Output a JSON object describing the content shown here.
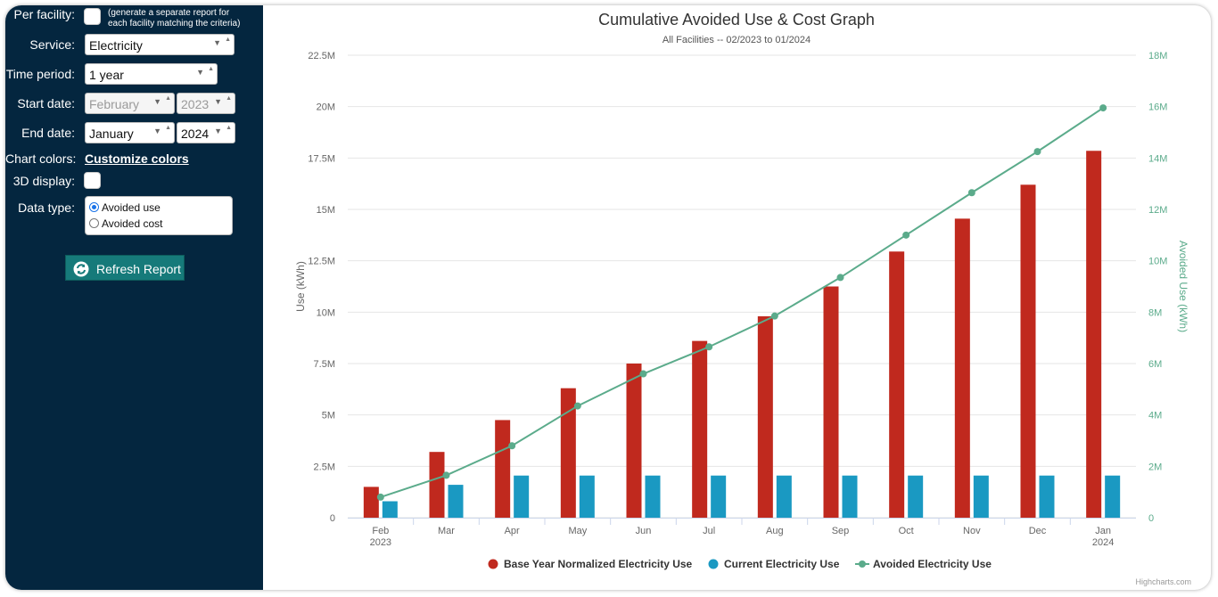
{
  "sidebar": {
    "per_facility": {
      "label": "Per facility:",
      "note_line1": "(generate a separate report for",
      "note_line2": "each facility matching the criteria)"
    },
    "service": {
      "label": "Service:",
      "value": "Electricity"
    },
    "time_period": {
      "label": "Time period:",
      "value": "1 year"
    },
    "start_date": {
      "label": "Start date:",
      "month": "February",
      "year": "2023"
    },
    "end_date": {
      "label": "End date:",
      "month": "January",
      "year": "2024"
    },
    "chart_colors": {
      "label": "Chart colors:",
      "link": "Customize colors"
    },
    "display_3d": {
      "label": "3D display:"
    },
    "data_type": {
      "label": "Data type:",
      "options": [
        "Avoided use",
        "Avoided cost"
      ],
      "selected": "Avoided use"
    },
    "refresh_label": "Refresh Report",
    "bg_color": "#04263f"
  },
  "chart_data": {
    "type": "bar",
    "title": "Cumulative Avoided Use & Cost Graph",
    "subtitle": "All Facilities -- 02/2023 to 01/2024",
    "categories": [
      "Feb",
      "Mar",
      "Apr",
      "May",
      "Jun",
      "Jul",
      "Aug",
      "Sep",
      "Oct",
      "Nov",
      "Dec",
      "Jan"
    ],
    "category_years": [
      "2023",
      "",
      "",
      "",
      "",
      "",
      "",
      "",
      "",
      "",
      "",
      "2024"
    ],
    "ylabel": "Use (kWh)",
    "ylabel_right": "Avoided Use (kWh)",
    "ylim": [
      0,
      22500000
    ],
    "ylim_right": [
      0,
      18000000
    ],
    "yticks": [
      "0",
      "2.5M",
      "5M",
      "7.5M",
      "10M",
      "12.5M",
      "15M",
      "17.5M",
      "20M",
      "22.5M"
    ],
    "yticks_right": [
      "0",
      "2M",
      "4M",
      "6M",
      "8M",
      "10M",
      "12M",
      "14M",
      "16M",
      "18M"
    ],
    "series": [
      {
        "name": "Base Year Normalized Electricity Use",
        "type": "bar",
        "axis": "left",
        "color": "#c0291e",
        "values": [
          1500000,
          3200000,
          4750000,
          6300000,
          7500000,
          8600000,
          9800000,
          11250000,
          12950000,
          14550000,
          16200000,
          17850000
        ]
      },
      {
        "name": "Current Electricity Use",
        "type": "bar",
        "axis": "left",
        "color": "#1a99c2",
        "values": [
          800000,
          1600000,
          2050000,
          2050000,
          2050000,
          2050000,
          2050000,
          2050000,
          2050000,
          2050000,
          2050000,
          2050000
        ]
      },
      {
        "name": "Avoided Electricity Use",
        "type": "line",
        "axis": "right",
        "color": "#5bab8b",
        "values": [
          800000,
          1650000,
          2800000,
          4350000,
          5600000,
          6650000,
          7850000,
          9350000,
          11000000,
          12650000,
          14250000,
          15950000
        ]
      }
    ],
    "credit": "Highcharts.com"
  }
}
